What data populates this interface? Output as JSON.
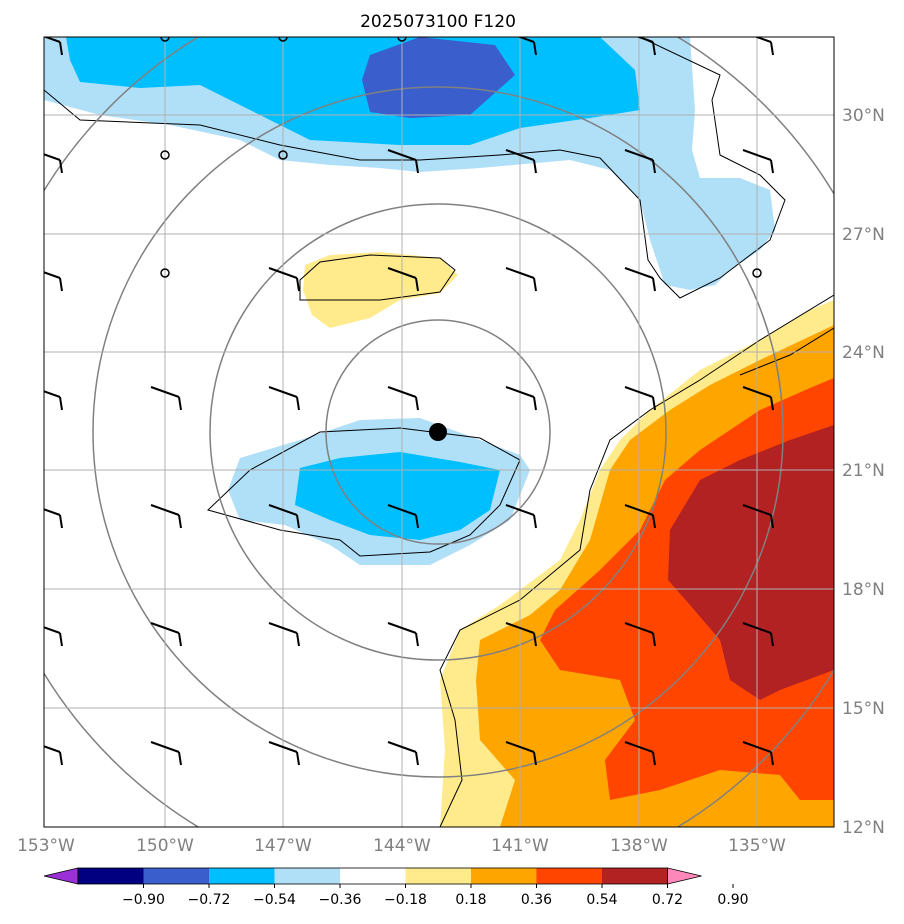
{
  "title": "2025073100 F120",
  "lat_labels": [
    "30°N",
    "27°N",
    "24°N",
    "21°N",
    "18°N",
    "15°N",
    "12°N"
  ],
  "lon_labels": [
    "153°W",
    "150°W",
    "147°W",
    "144°W",
    "141°W",
    "138°W",
    "135°W"
  ],
  "colorbar": {
    "ticks": [
      "−0.90",
      "−0.72",
      "−0.54",
      "−0.36",
      "−0.18",
      "0.18",
      "0.36",
      "0.54",
      "0.72",
      "0.90"
    ],
    "colors": [
      "#9b30d8",
      "#000080",
      "#3a5fcd",
      "#00bfff",
      "#b0dff8",
      "#ffffff",
      "#ffea8c",
      "#ffa500",
      "#ff4500",
      "#b22222",
      "#ff88bb"
    ]
  },
  "map": {
    "lon_range": [
      -153,
      -133
    ],
    "lat_range": [
      12,
      32
    ],
    "storm_center": {
      "lon": -143,
      "lat": 22
    },
    "fill_colors": {
      "neg_light": "#b0dff8",
      "neg_mid": "#00bfff",
      "neg_dark": "#3a5fcd",
      "pos_light": "#ffea8c",
      "pos_mid": "#ffa500",
      "pos_dark": "#ff4500",
      "pos_max": "#b22222"
    }
  }
}
